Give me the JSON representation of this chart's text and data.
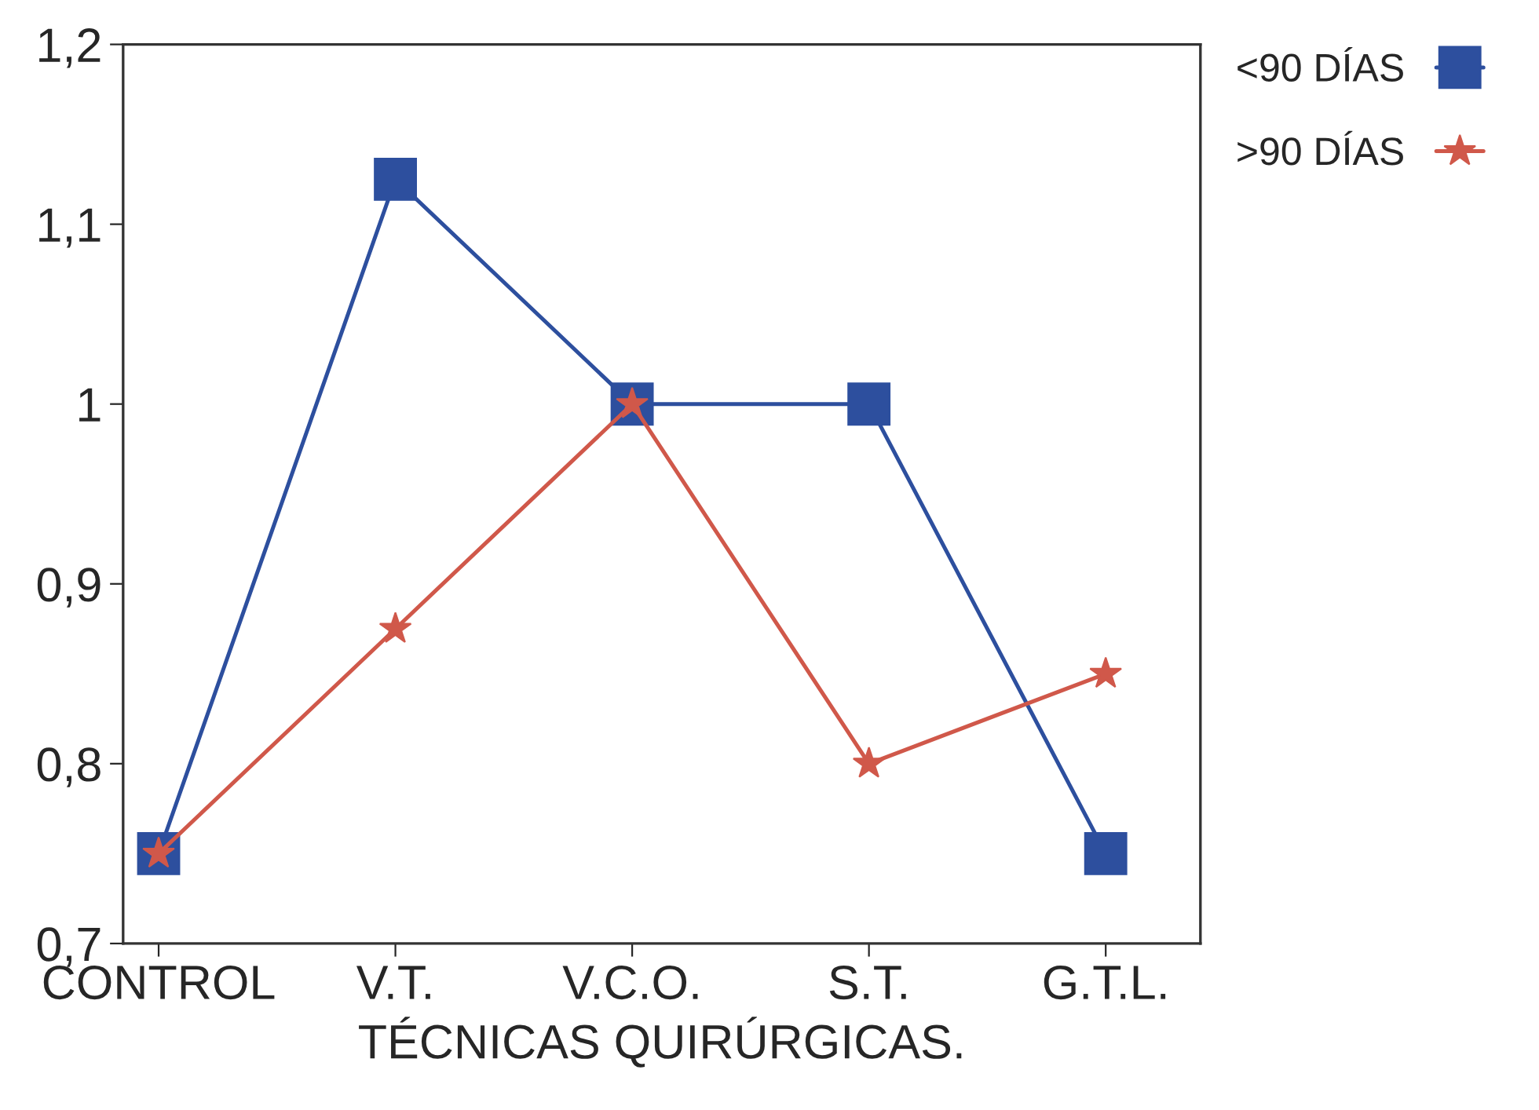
{
  "chart_data": {
    "type": "line",
    "xlabel": "TÉCNICAS QUIRÚRGICAS.",
    "categories": [
      "CONTROL",
      "V.T.",
      "V.C.O.",
      "S.T.",
      "G.T.L."
    ],
    "series": [
      {
        "name": "<90 DÍAS",
        "color": "#2d4f9e",
        "marker": "square",
        "values": [
          0.75,
          1.125,
          1.0,
          1.0,
          0.75
        ]
      },
      {
        "name": ">90 DÍAS",
        "color": "#d0584a",
        "marker": "star",
        "values": [
          0.75,
          0.875,
          1.0,
          0.8,
          0.85
        ]
      }
    ],
    "ylim": [
      0.7,
      1.2
    ],
    "yticks": [
      {
        "value": 0.7,
        "label": "0,7"
      },
      {
        "value": 0.8,
        "label": "0,8"
      },
      {
        "value": 0.9,
        "label": "0,9"
      },
      {
        "value": 1.0,
        "label": "1"
      },
      {
        "value": 1.1,
        "label": "1,1"
      },
      {
        "value": 1.2,
        "label": "1,2"
      }
    ],
    "grid": false,
    "legend": "top right",
    "line_style": "solid"
  }
}
